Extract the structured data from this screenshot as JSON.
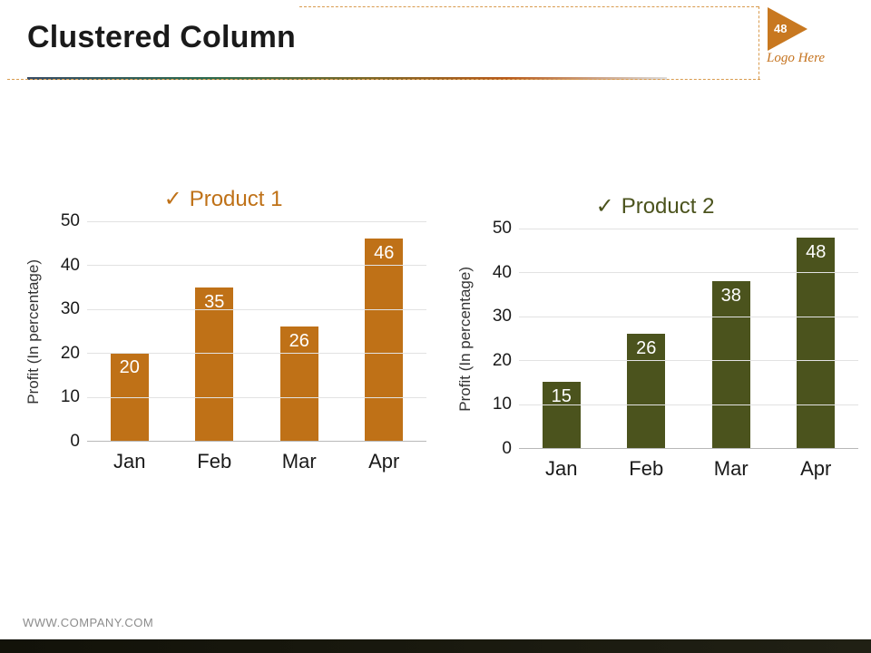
{
  "slide": {
    "title": "Clustered Column",
    "page_number": "48",
    "logo_text": "Logo Here",
    "footer_url": "WWW.COMPANY.COM"
  },
  "chart_data": [
    {
      "type": "bar",
      "title": "Product 1",
      "title_prefix": "✓",
      "categories": [
        "Jan",
        "Feb",
        "Mar",
        "Apr"
      ],
      "values": [
        20,
        35,
        26,
        46
      ],
      "ylabel": "Profit  (In percentage)",
      "ylim": [
        0,
        50
      ],
      "yticks": [
        50,
        40,
        30,
        20,
        10,
        0
      ],
      "grid": true,
      "legend": "none",
      "bar_color": "#bf7117",
      "title_color": "#bf7117",
      "value_label_color": "#ffffff"
    },
    {
      "type": "bar",
      "title": "Product 2",
      "title_prefix": "✓",
      "categories": [
        "Jan",
        "Feb",
        "Mar",
        "Apr"
      ],
      "values": [
        15,
        26,
        38,
        48
      ],
      "ylabel": "Profit  (In percentage)",
      "ylim": [
        0,
        50
      ],
      "yticks": [
        50,
        40,
        30,
        20,
        10,
        0
      ],
      "grid": true,
      "legend": "none",
      "bar_color": "#4b531d",
      "title_color": "#4b531d",
      "value_label_color": "#ffffff"
    }
  ]
}
